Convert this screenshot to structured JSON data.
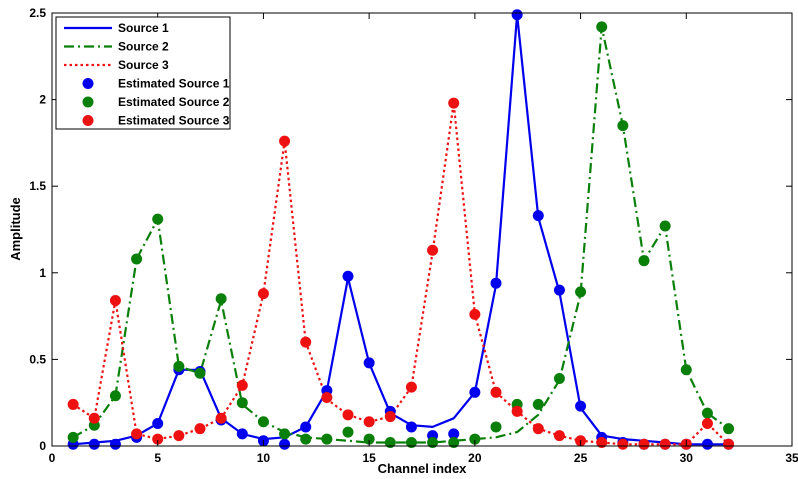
{
  "chart_data": {
    "type": "line",
    "xlabel": "Channel index",
    "ylabel": "Amplitude",
    "xlim": [
      0,
      35
    ],
    "ylim": [
      0,
      2.5
    ],
    "xticks": [
      0,
      5,
      10,
      15,
      20,
      25,
      30,
      35
    ],
    "yticks": [
      0,
      0.5,
      1,
      1.5,
      2,
      2.5
    ],
    "x": [
      1,
      2,
      3,
      4,
      5,
      6,
      7,
      8,
      9,
      10,
      11,
      12,
      13,
      14,
      15,
      16,
      17,
      18,
      19,
      20,
      21,
      22,
      23,
      24,
      25,
      26,
      27,
      28,
      29,
      30,
      31,
      32
    ],
    "legend_position": "top-left",
    "series": [
      {
        "name": "Source 1",
        "style": "solid",
        "color": "#0000ee",
        "values": [
          0.01,
          0.02,
          0.03,
          0.06,
          0.13,
          0.44,
          0.44,
          0.16,
          0.07,
          0.04,
          0.05,
          0.11,
          0.32,
          0.97,
          0.48,
          0.19,
          0.12,
          0.11,
          0.16,
          0.31,
          0.93,
          2.49,
          1.32,
          0.89,
          0.22,
          0.06,
          0.04,
          0.03,
          0.02,
          0.01,
          0.01,
          0.01
        ]
      },
      {
        "name": "Source 2",
        "style": "dashdot",
        "color": "#0a7f0a",
        "values": [
          0.05,
          0.12,
          0.29,
          1.08,
          1.31,
          0.46,
          0.42,
          0.84,
          0.24,
          0.14,
          0.08,
          0.05,
          0.04,
          0.03,
          0.02,
          0.02,
          0.02,
          0.02,
          0.03,
          0.04,
          0.05,
          0.08,
          0.18,
          0.38,
          0.88,
          2.42,
          1.85,
          1.07,
          1.27,
          0.44,
          0.19,
          0.1
        ]
      },
      {
        "name": "Source 3",
        "style": "dotted",
        "color": "#ee1111",
        "values": [
          0.24,
          0.16,
          0.84,
          0.07,
          0.04,
          0.06,
          0.1,
          0.16,
          0.35,
          0.88,
          1.76,
          0.6,
          0.27,
          0.18,
          0.14,
          0.17,
          0.34,
          1.12,
          1.98,
          0.76,
          0.31,
          0.2,
          0.1,
          0.06,
          0.03,
          0.02,
          0.01,
          0.01,
          0.01,
          0.01,
          0.13,
          0.01
        ]
      },
      {
        "name": "Estimated Source 1",
        "style": "markers",
        "color": "#0000ee",
        "values": [
          0.01,
          0.01,
          0.01,
          0.05,
          0.13,
          0.44,
          0.43,
          0.15,
          0.07,
          0.03,
          0.01,
          0.11,
          0.32,
          0.98,
          0.48,
          0.2,
          0.11,
          0.06,
          0.07,
          0.31,
          0.94,
          2.49,
          1.33,
          0.9,
          0.23,
          0.05,
          0.02,
          0.01,
          0.01,
          0.01,
          0.01,
          0.01
        ]
      },
      {
        "name": "Estimated Source 2",
        "style": "markers",
        "color": "#0a7f0a",
        "values": [
          0.05,
          0.12,
          0.29,
          1.08,
          1.31,
          0.46,
          0.42,
          0.85,
          0.25,
          0.14,
          0.07,
          0.04,
          0.04,
          0.08,
          0.04,
          0.02,
          0.02,
          0.02,
          0.02,
          0.04,
          0.11,
          0.24,
          0.24,
          0.39,
          0.89,
          2.42,
          1.85,
          1.07,
          1.27,
          0.44,
          0.19,
          0.1
        ]
      },
      {
        "name": "Estimated Source 3",
        "style": "markers",
        "color": "#ee1111",
        "values": [
          0.24,
          0.16,
          0.84,
          0.07,
          0.04,
          0.06,
          0.1,
          0.16,
          0.35,
          0.88,
          1.76,
          0.6,
          0.28,
          0.18,
          0.14,
          0.17,
          0.34,
          1.13,
          1.98,
          0.76,
          0.31,
          0.2,
          0.1,
          0.06,
          0.03,
          0.02,
          0.01,
          0.01,
          0.01,
          0.01,
          0.13,
          0.01
        ]
      }
    ]
  }
}
